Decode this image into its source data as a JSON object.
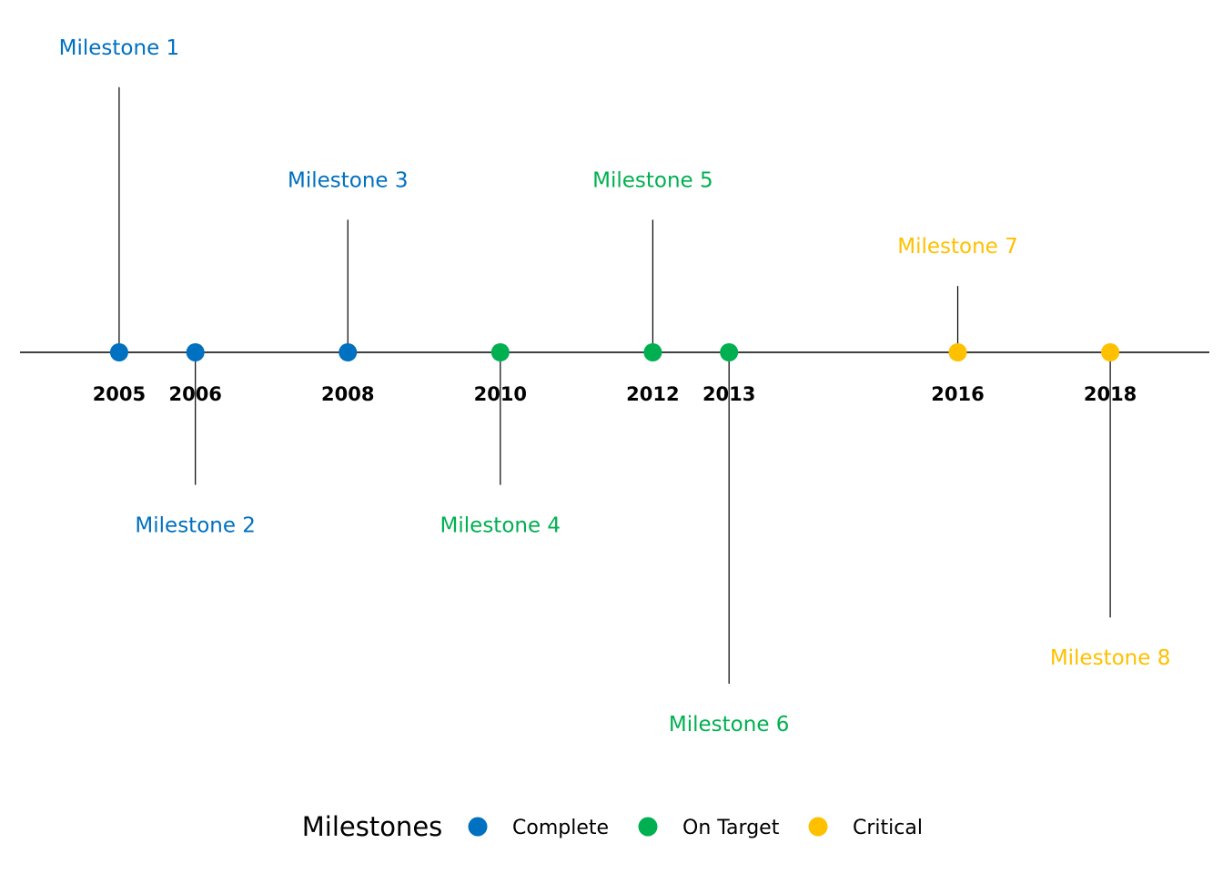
{
  "chart_data": {
    "type": "timeline",
    "title": "",
    "x_range": [
      2003.7,
      2019.3
    ],
    "milestones": [
      {
        "label": "Milestone 1",
        "year": "2005",
        "x": 2005.0,
        "level": 4,
        "status": "Complete"
      },
      {
        "label": "Milestone 2",
        "year": "2006",
        "x": 2006.0,
        "level": -2,
        "status": "Complete"
      },
      {
        "label": "Milestone 3",
        "year": "2008",
        "x": 2008.0,
        "level": 2,
        "status": "Complete"
      },
      {
        "label": "Milestone 4",
        "year": "2010",
        "x": 2010.0,
        "level": -2,
        "status": "On Target"
      },
      {
        "label": "Milestone 5",
        "year": "2012",
        "x": 2012.0,
        "level": 2,
        "status": "On Target"
      },
      {
        "label": "Milestone 6",
        "year": "2013",
        "x": 2013.0,
        "level": -5,
        "status": "On Target"
      },
      {
        "label": "Milestone 7",
        "year": "2016",
        "x": 2016.0,
        "level": 1,
        "status": "Critical"
      },
      {
        "label": "Milestone 8",
        "year": "2018",
        "x": 2018.0,
        "level": -4,
        "status": "Critical"
      }
    ],
    "legend": {
      "title": "Milestones",
      "position": "bottom",
      "items": [
        {
          "name": "Complete",
          "color": "#0070C0"
        },
        {
          "name": "On Target",
          "color": "#00B050"
        },
        {
          "name": "Critical",
          "color": "#FFC000"
        }
      ]
    },
    "axis_color": "#000000",
    "stem_color": "#000000"
  }
}
